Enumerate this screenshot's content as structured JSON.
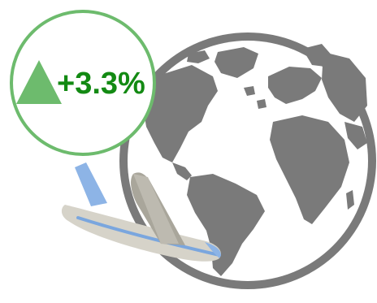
{
  "badge": {
    "change_text": "+3.3%",
    "direction": "up",
    "icon": "triangle-up-icon"
  },
  "icons": {
    "globe": "globe-icon",
    "airplane": "airplane-icon"
  },
  "colors": {
    "badge_green": "#6dbb6d",
    "badge_text": "#138a13",
    "globe_gray": "#757575",
    "plane_body": "#d6d3c9",
    "plane_tail": "#8db4e6",
    "plane_stripe": "#7aa6de"
  }
}
